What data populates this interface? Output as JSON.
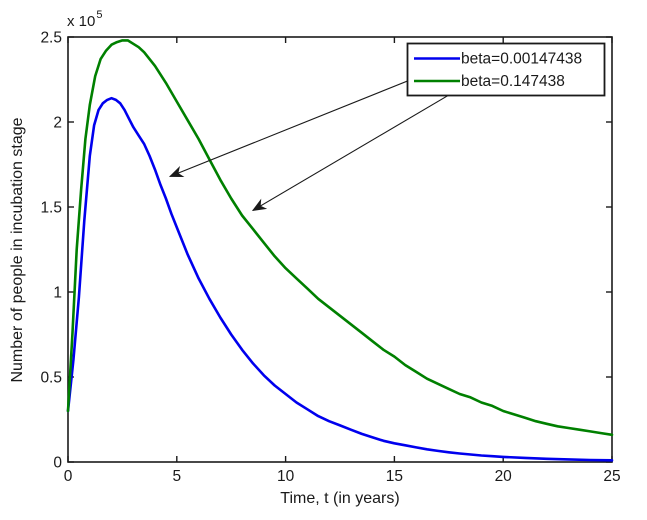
{
  "figure": {
    "background": "#ffffff"
  },
  "colors": {
    "axis": "#1a1a1a",
    "series_blue": "#0000ee",
    "series_green": "#008000",
    "arrow": "#1a1a1a",
    "legend_background": "#ffffff"
  },
  "chart_data": {
    "type": "line",
    "title": "",
    "xlabel": "Time, t (in years)",
    "ylabel": "Number of people in incubation stage",
    "y_exponent": {
      "base": "x 10",
      "power": "5"
    },
    "y_unit_note": "y values in units of 1e5 people",
    "xlim": [
      0,
      25
    ],
    "ylim": [
      0,
      2.5
    ],
    "x_ticks": [
      0,
      5,
      10,
      15,
      20,
      25
    ],
    "x_tick_labels": [
      "0",
      "5",
      "10",
      "15",
      "20",
      "25"
    ],
    "y_ticks": [
      0,
      0.5,
      1,
      1.5,
      2,
      2.5
    ],
    "y_tick_labels": [
      "0",
      "0.5",
      "1",
      "1.5",
      "2",
      "2.5"
    ],
    "grid": false,
    "legend": {
      "position": "upper-right",
      "entries": [
        "beta=0.00147438",
        "beta=0.147438"
      ]
    },
    "series": [
      {
        "name": "beta=0.00147438",
        "color": "#0000ee",
        "points": [
          [
            0,
            0.3
          ],
          [
            0.25,
            0.6
          ],
          [
            0.5,
            0.97
          ],
          [
            0.75,
            1.42
          ],
          [
            1.0,
            1.8
          ],
          [
            1.2,
            1.98
          ],
          [
            1.4,
            2.07
          ],
          [
            1.6,
            2.11
          ],
          [
            1.8,
            2.13
          ],
          [
            2.0,
            2.14
          ],
          [
            2.2,
            2.13
          ],
          [
            2.4,
            2.11
          ],
          [
            2.6,
            2.07
          ],
          [
            2.8,
            2.02
          ],
          [
            3.0,
            1.97
          ],
          [
            3.25,
            1.92
          ],
          [
            3.5,
            1.87
          ],
          [
            3.75,
            1.8
          ],
          [
            4.0,
            1.72
          ],
          [
            4.25,
            1.63
          ],
          [
            4.5,
            1.55
          ],
          [
            4.75,
            1.46
          ],
          [
            5.0,
            1.38
          ],
          [
            5.5,
            1.22
          ],
          [
            6.0,
            1.08
          ],
          [
            6.5,
            0.96
          ],
          [
            7.0,
            0.85
          ],
          [
            7.5,
            0.75
          ],
          [
            8.0,
            0.66
          ],
          [
            8.5,
            0.58
          ],
          [
            9.0,
            0.51
          ],
          [
            9.5,
            0.45
          ],
          [
            10.0,
            0.4
          ],
          [
            10.5,
            0.35
          ],
          [
            11.0,
            0.31
          ],
          [
            11.5,
            0.27
          ],
          [
            12.0,
            0.24
          ],
          [
            12.5,
            0.215
          ],
          [
            13.0,
            0.19
          ],
          [
            13.5,
            0.165
          ],
          [
            14.0,
            0.145
          ],
          [
            14.5,
            0.125
          ],
          [
            15.0,
            0.11
          ],
          [
            15.5,
            0.098
          ],
          [
            16.0,
            0.086
          ],
          [
            16.5,
            0.075
          ],
          [
            17.0,
            0.065
          ],
          [
            17.5,
            0.057
          ],
          [
            18.0,
            0.05
          ],
          [
            18.5,
            0.044
          ],
          [
            19.0,
            0.038
          ],
          [
            19.5,
            0.034
          ],
          [
            20.0,
            0.03
          ],
          [
            21.0,
            0.024
          ],
          [
            22.0,
            0.019
          ],
          [
            23.0,
            0.015
          ],
          [
            24.0,
            0.012
          ],
          [
            25.0,
            0.01
          ]
        ]
      },
      {
        "name": "beta=0.147438",
        "color": "#008000",
        "points": [
          [
            0,
            0.3
          ],
          [
            0.2,
            0.75
          ],
          [
            0.4,
            1.25
          ],
          [
            0.6,
            1.6
          ],
          [
            0.8,
            1.9
          ],
          [
            1.0,
            2.1
          ],
          [
            1.25,
            2.27
          ],
          [
            1.5,
            2.37
          ],
          [
            1.75,
            2.42
          ],
          [
            2.0,
            2.455
          ],
          [
            2.25,
            2.47
          ],
          [
            2.5,
            2.48
          ],
          [
            2.75,
            2.48
          ],
          [
            3.0,
            2.46
          ],
          [
            3.25,
            2.44
          ],
          [
            3.5,
            2.41
          ],
          [
            4.0,
            2.33
          ],
          [
            4.5,
            2.23
          ],
          [
            5.0,
            2.12
          ],
          [
            5.5,
            2.01
          ],
          [
            6.0,
            1.9
          ],
          [
            6.5,
            1.78
          ],
          [
            7.0,
            1.66
          ],
          [
            7.5,
            1.55
          ],
          [
            8.0,
            1.45
          ],
          [
            8.5,
            1.37
          ],
          [
            9.0,
            1.29
          ],
          [
            9.5,
            1.21
          ],
          [
            10.0,
            1.14
          ],
          [
            10.5,
            1.08
          ],
          [
            11.0,
            1.02
          ],
          [
            11.5,
            0.96
          ],
          [
            12.0,
            0.91
          ],
          [
            12.5,
            0.86
          ],
          [
            13.0,
            0.81
          ],
          [
            13.5,
            0.76
          ],
          [
            14.0,
            0.71
          ],
          [
            14.5,
            0.66
          ],
          [
            15.0,
            0.62
          ],
          [
            15.5,
            0.57
          ],
          [
            16.0,
            0.53
          ],
          [
            16.5,
            0.49
          ],
          [
            17.0,
            0.46
          ],
          [
            17.5,
            0.43
          ],
          [
            18.0,
            0.4
          ],
          [
            18.5,
            0.38
          ],
          [
            19.0,
            0.35
          ],
          [
            19.5,
            0.33
          ],
          [
            20.0,
            0.3
          ],
          [
            20.5,
            0.28
          ],
          [
            21.0,
            0.26
          ],
          [
            21.5,
            0.24
          ],
          [
            22.0,
            0.225
          ],
          [
            22.5,
            0.21
          ],
          [
            23.0,
            0.2
          ],
          [
            23.5,
            0.19
          ],
          [
            24.0,
            0.18
          ],
          [
            24.5,
            0.17
          ],
          [
            25.0,
            0.16
          ]
        ]
      }
    ],
    "annotations": {
      "arrows": [
        {
          "points_to": "beta=0.00147438",
          "from": [
            18.01,
            2.365
          ],
          "to": [
            4.69,
            1.68
          ]
        },
        {
          "points_to": "beta=0.147438",
          "from": [
            18.29,
            2.218
          ],
          "to": [
            8.5,
            1.48
          ]
        }
      ]
    }
  }
}
